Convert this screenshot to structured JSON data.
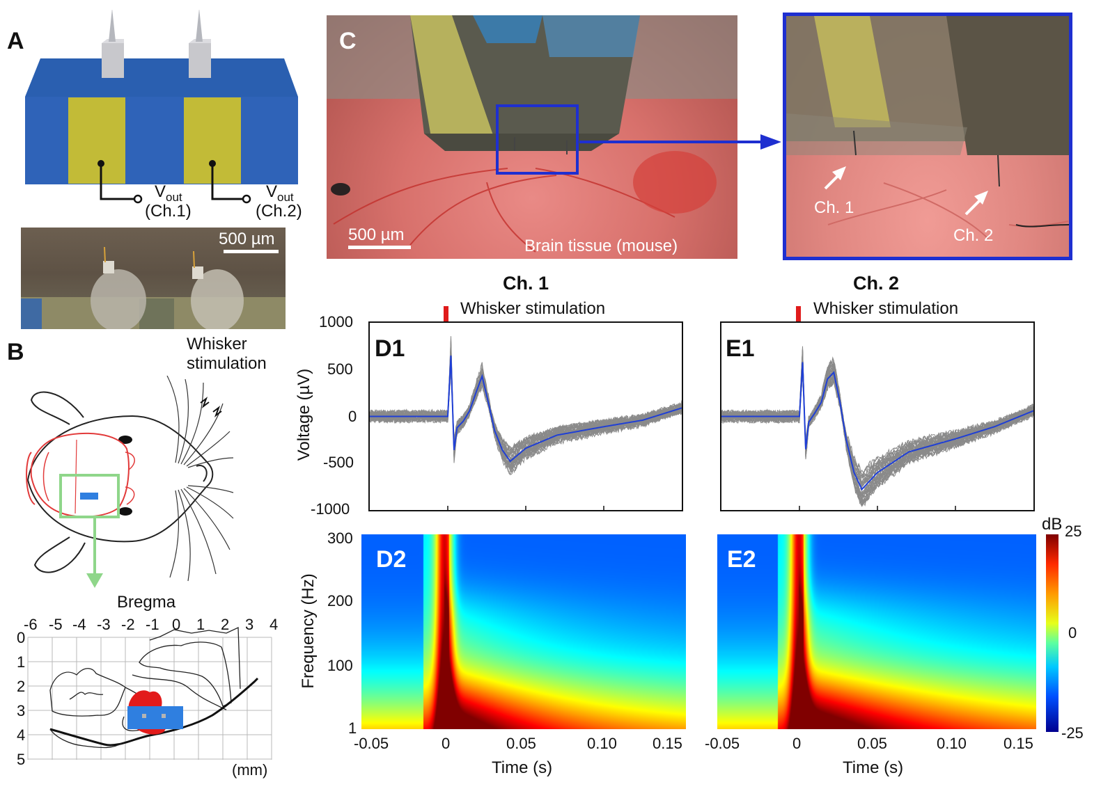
{
  "panels": {
    "A": "A",
    "B": "B",
    "C": "C",
    "D1": "D1",
    "E1": "E1",
    "D2": "D2",
    "E2": "E2"
  },
  "panel_a": {
    "vout_label": "V",
    "vout_sub": "out",
    "ch1_label": "(Ch.1)",
    "ch2_label": "(Ch.2)",
    "scalebar_label": "500 µm"
  },
  "panel_b": {
    "whisker_label_line1": "Whisker",
    "whisker_label_line2": "stimulation",
    "bregma_label": "Bregma",
    "x_ticks": [
      "-6",
      "-5",
      "-4",
      "-3",
      "-2",
      "-1",
      "0",
      "1",
      "2",
      "3",
      "4"
    ],
    "y_ticks": [
      "0",
      "1",
      "2",
      "3",
      "4",
      "5"
    ],
    "unit_label": "(mm)"
  },
  "panel_c": {
    "scalebar_label": "500 µm",
    "tissue_label": "Brain tissue (mouse)",
    "ch1_label": "Ch. 1",
    "ch2_label": "Ch. 2"
  },
  "channels": {
    "ch1_title": "Ch. 1",
    "ch2_title": "Ch. 2",
    "stim_label": "Whisker stimulation"
  },
  "colors": {
    "probe_blue": "#2f63b8",
    "gold": "#c2bb37",
    "mean_trace": "#1f3fd6",
    "trial_traces": "#8a8a8a",
    "stim_marker": "#e01b1b",
    "callout_green": "#8fd68a",
    "zoom_box": "#1e2fd0",
    "brain_outline": "#e23a3a"
  },
  "chart_data": [
    {
      "type": "line",
      "panel": "D1",
      "xlabel": "",
      "ylabel": "Voltage (µV)",
      "ylim": [
        -1000,
        1000
      ],
      "xlim": [
        -0.05,
        0.15
      ],
      "y_ticks": [
        "1000",
        "500",
        "0",
        "-500",
        "-1000"
      ],
      "series": [
        {
          "x": [
            -0.05,
            -0.01,
            0.0,
            0.002,
            0.004,
            0.006,
            0.01,
            0.014,
            0.018,
            0.022,
            0.026,
            0.03,
            0.035,
            0.04,
            0.05,
            0.07,
            0.1,
            0.125,
            0.15
          ],
          "y": [
            0,
            0,
            0,
            650,
            -360,
            -120,
            -50,
            60,
            250,
            430,
            150,
            -150,
            -360,
            -480,
            -340,
            -200,
            -110,
            -40,
            90
          ]
        }
      ]
    },
    {
      "type": "line",
      "panel": "E1",
      "xlabel": "",
      "ylabel": "",
      "ylim": [
        -1000,
        1000
      ],
      "xlim": [
        -0.05,
        0.15
      ],
      "y_ticks": [
        "1000",
        "500",
        "0",
        "-500",
        "-1000"
      ],
      "series": [
        {
          "x": [
            -0.05,
            -0.01,
            0.0,
            0.002,
            0.004,
            0.006,
            0.01,
            0.014,
            0.018,
            0.022,
            0.026,
            0.03,
            0.035,
            0.04,
            0.05,
            0.07,
            0.1,
            0.125,
            0.15
          ],
          "y": [
            0,
            0,
            0,
            580,
            -350,
            -60,
            40,
            150,
            400,
            470,
            150,
            -250,
            -600,
            -780,
            -600,
            -380,
            -240,
            -110,
            60
          ]
        }
      ]
    },
    {
      "type": "heatmap",
      "panel": "D2",
      "xlabel": "Time (s)",
      "ylabel": "Frequency (Hz)",
      "xlim": [
        -0.05,
        0.15
      ],
      "x_ticks": [
        "-0.05",
        "0",
        "0.05",
        "0.10",
        "0.15"
      ],
      "y_ticks": [
        "300",
        "200",
        "100",
        "1"
      ],
      "colorbar": {
        "label": "dB",
        "range": [
          -25,
          25
        ],
        "ticks": [
          "25",
          "0",
          "-25"
        ]
      }
    },
    {
      "type": "heatmap",
      "panel": "E2",
      "xlabel": "Time (s)",
      "ylabel": "",
      "xlim": [
        -0.05,
        0.15
      ],
      "x_ticks": [
        "-0.05",
        "0",
        "0.05",
        "0.10",
        "0.15"
      ],
      "y_ticks": [],
      "colorbar": {
        "label": "dB",
        "range": [
          -25,
          25
        ],
        "ticks": [
          "25",
          "0",
          "-25"
        ]
      }
    }
  ]
}
